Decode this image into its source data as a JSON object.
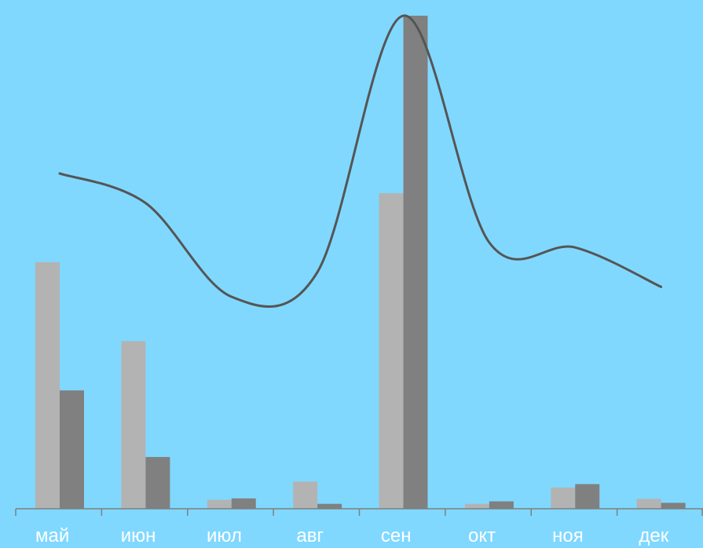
{
  "chart_data": {
    "type": "bar",
    "categories": [
      "май",
      "июн",
      "июл",
      "авг",
      "сен",
      "окт",
      "ноя",
      "дек"
    ],
    "series": [
      {
        "type": "bar",
        "color": "#b3b3b3",
        "values": [
          50,
          34,
          1.8,
          5.5,
          64,
          1,
          4.3,
          2
        ]
      },
      {
        "type": "bar",
        "color": "#808080",
        "values": [
          24,
          10.5,
          2.1,
          1,
          100,
          1.5,
          5,
          1.2
        ]
      },
      {
        "type": "line",
        "color": "#555555",
        "values": [
          68,
          62,
          43,
          48,
          100,
          54,
          53,
          45
        ]
      }
    ],
    "ylim": [
      0,
      100
    ],
    "grid": false,
    "legend": "none"
  }
}
